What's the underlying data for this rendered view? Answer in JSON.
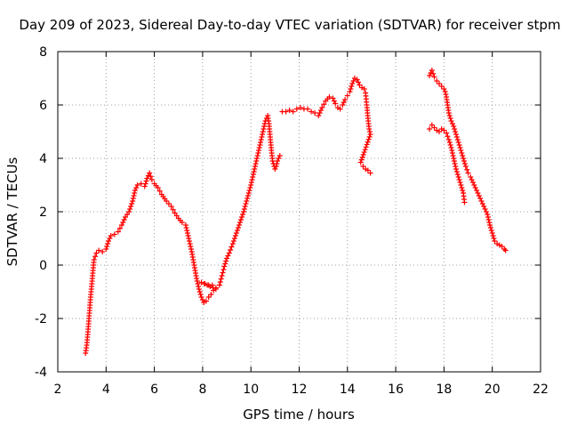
{
  "chart_data": {
    "type": "scatter",
    "title": "Day 209 of 2023, Sidereal Day-to-day VTEC variation (SDTVAR) for receiver stpm",
    "xlabel": "GPS time / hours",
    "ylabel": "SDTVAR / TECUs",
    "xlim": [
      2,
      22
    ],
    "ylim": [
      -4,
      8
    ],
    "xticks": [
      2,
      4,
      6,
      8,
      10,
      12,
      14,
      16,
      18,
      20,
      22
    ],
    "yticks": [
      -4,
      -2,
      0,
      2,
      4,
      6,
      8
    ],
    "grid": true,
    "legend": "none",
    "marker": "plus",
    "color": "#ff0000",
    "series": [
      {
        "values": [
          [
            3.15,
            -3.3
          ],
          [
            3.2,
            -3.0
          ],
          [
            3.25,
            -2.5
          ],
          [
            3.3,
            -1.9
          ],
          [
            3.35,
            -1.3
          ],
          [
            3.4,
            -0.8
          ],
          [
            3.45,
            -0.3
          ],
          [
            3.5,
            0.2
          ],
          [
            3.6,
            0.45
          ],
          [
            3.7,
            0.55
          ],
          [
            3.85,
            0.5
          ],
          [
            4.0,
            0.6
          ],
          [
            4.1,
            0.9
          ],
          [
            4.2,
            1.1
          ],
          [
            4.35,
            1.15
          ],
          [
            4.5,
            1.25
          ],
          [
            4.65,
            1.5
          ],
          [
            4.8,
            1.8
          ],
          [
            4.95,
            2.0
          ],
          [
            5.1,
            2.4
          ],
          [
            5.2,
            2.8
          ],
          [
            5.3,
            3.0
          ],
          [
            5.45,
            3.05
          ],
          [
            5.6,
            2.95
          ],
          [
            5.7,
            3.25
          ],
          [
            5.8,
            3.45
          ],
          [
            5.9,
            3.2
          ],
          [
            6.0,
            3.05
          ],
          [
            6.15,
            2.9
          ],
          [
            6.3,
            2.65
          ],
          [
            6.5,
            2.4
          ],
          [
            6.7,
            2.2
          ],
          [
            6.85,
            1.95
          ],
          [
            7.0,
            1.75
          ],
          [
            7.15,
            1.6
          ],
          [
            7.3,
            1.5
          ],
          [
            7.45,
            0.9
          ],
          [
            7.55,
            0.5
          ],
          [
            7.65,
            0.0
          ],
          [
            7.75,
            -0.5
          ],
          [
            7.85,
            -0.9
          ],
          [
            7.95,
            -1.2
          ],
          [
            8.05,
            -1.4
          ],
          [
            8.15,
            -1.35
          ],
          [
            8.25,
            -1.2
          ],
          [
            8.35,
            -1.1
          ],
          [
            8.45,
            -0.95
          ],
          [
            8.55,
            -0.9
          ],
          [
            7.95,
            -0.65
          ],
          [
            8.1,
            -0.7
          ],
          [
            8.25,
            -0.75
          ],
          [
            8.4,
            -0.75
          ],
          [
            8.55,
            -0.85
          ],
          [
            8.7,
            -0.75
          ],
          [
            8.8,
            -0.4
          ],
          [
            8.9,
            -0.05
          ],
          [
            9.0,
            0.25
          ],
          [
            9.1,
            0.45
          ],
          [
            9.25,
            0.8
          ],
          [
            9.4,
            1.2
          ],
          [
            9.55,
            1.6
          ],
          [
            9.7,
            2.0
          ],
          [
            9.85,
            2.5
          ],
          [
            10.0,
            3.0
          ],
          [
            10.1,
            3.4
          ],
          [
            10.2,
            3.8
          ],
          [
            10.3,
            4.2
          ],
          [
            10.4,
            4.6
          ],
          [
            10.5,
            5.0
          ],
          [
            10.6,
            5.4
          ],
          [
            10.7,
            5.6
          ],
          [
            10.75,
            5.3
          ],
          [
            10.8,
            4.8
          ],
          [
            10.85,
            4.3
          ],
          [
            10.9,
            3.9
          ],
          [
            11.0,
            3.6
          ],
          [
            11.05,
            3.7
          ],
          [
            11.1,
            3.9
          ],
          [
            11.2,
            4.1
          ],
          [
            11.3,
            5.75
          ],
          [
            11.45,
            5.75
          ],
          [
            11.6,
            5.8
          ],
          [
            11.75,
            5.75
          ],
          [
            11.9,
            5.85
          ],
          [
            12.05,
            5.9
          ],
          [
            12.2,
            5.85
          ],
          [
            12.35,
            5.85
          ],
          [
            12.5,
            5.75
          ],
          [
            12.65,
            5.7
          ],
          [
            12.8,
            5.6
          ],
          [
            12.95,
            5.9
          ],
          [
            13.1,
            6.15
          ],
          [
            13.25,
            6.3
          ],
          [
            13.4,
            6.25
          ],
          [
            13.5,
            6.05
          ],
          [
            13.6,
            5.9
          ],
          [
            13.7,
            5.85
          ],
          [
            13.8,
            6.0
          ],
          [
            13.9,
            6.2
          ],
          [
            14.0,
            6.35
          ],
          [
            14.1,
            6.5
          ],
          [
            14.2,
            6.8
          ],
          [
            14.3,
            7.0
          ],
          [
            14.4,
            6.95
          ],
          [
            14.5,
            6.75
          ],
          [
            14.6,
            6.65
          ],
          [
            14.7,
            6.6
          ],
          [
            14.75,
            6.45
          ],
          [
            14.8,
            6.0
          ],
          [
            14.85,
            5.5
          ],
          [
            14.9,
            5.1
          ],
          [
            14.95,
            4.9
          ],
          [
            14.55,
            3.85
          ],
          [
            14.65,
            3.7
          ],
          [
            14.75,
            3.6
          ],
          [
            14.85,
            3.55
          ],
          [
            14.95,
            3.45
          ]
        ]
      },
      {
        "values": [
          [
            17.4,
            7.1
          ],
          [
            17.5,
            7.3
          ],
          [
            17.6,
            7.05
          ],
          [
            17.7,
            6.9
          ],
          [
            17.8,
            6.8
          ],
          [
            17.9,
            6.7
          ],
          [
            18.0,
            6.6
          ],
          [
            18.05,
            6.5
          ],
          [
            18.1,
            6.3
          ],
          [
            18.15,
            6.0
          ],
          [
            18.2,
            5.7
          ],
          [
            18.3,
            5.4
          ],
          [
            18.4,
            5.2
          ],
          [
            18.5,
            4.9
          ],
          [
            18.6,
            4.6
          ],
          [
            18.7,
            4.3
          ],
          [
            18.8,
            4.0
          ],
          [
            18.9,
            3.7
          ],
          [
            19.0,
            3.45
          ],
          [
            19.1,
            3.3
          ],
          [
            19.2,
            3.1
          ],
          [
            19.3,
            2.9
          ],
          [
            19.4,
            2.7
          ],
          [
            19.5,
            2.5
          ],
          [
            19.6,
            2.3
          ],
          [
            19.7,
            2.1
          ],
          [
            19.8,
            1.9
          ],
          [
            19.9,
            1.5
          ],
          [
            20.0,
            1.2
          ],
          [
            20.1,
            0.9
          ],
          [
            20.2,
            0.8
          ],
          [
            20.3,
            0.75
          ],
          [
            20.4,
            0.7
          ],
          [
            20.5,
            0.6
          ],
          [
            20.55,
            0.55
          ],
          [
            17.4,
            5.1
          ],
          [
            17.5,
            5.25
          ],
          [
            17.6,
            5.15
          ],
          [
            17.7,
            5.05
          ],
          [
            17.8,
            5.0
          ],
          [
            17.9,
            5.1
          ],
          [
            18.0,
            5.05
          ],
          [
            18.1,
            4.95
          ],
          [
            18.2,
            4.7
          ],
          [
            18.3,
            4.4
          ],
          [
            18.4,
            4.0
          ],
          [
            18.5,
            3.6
          ],
          [
            18.6,
            3.3
          ],
          [
            18.7,
            3.0
          ],
          [
            18.8,
            2.7
          ],
          [
            18.85,
            2.35
          ]
        ]
      }
    ]
  }
}
